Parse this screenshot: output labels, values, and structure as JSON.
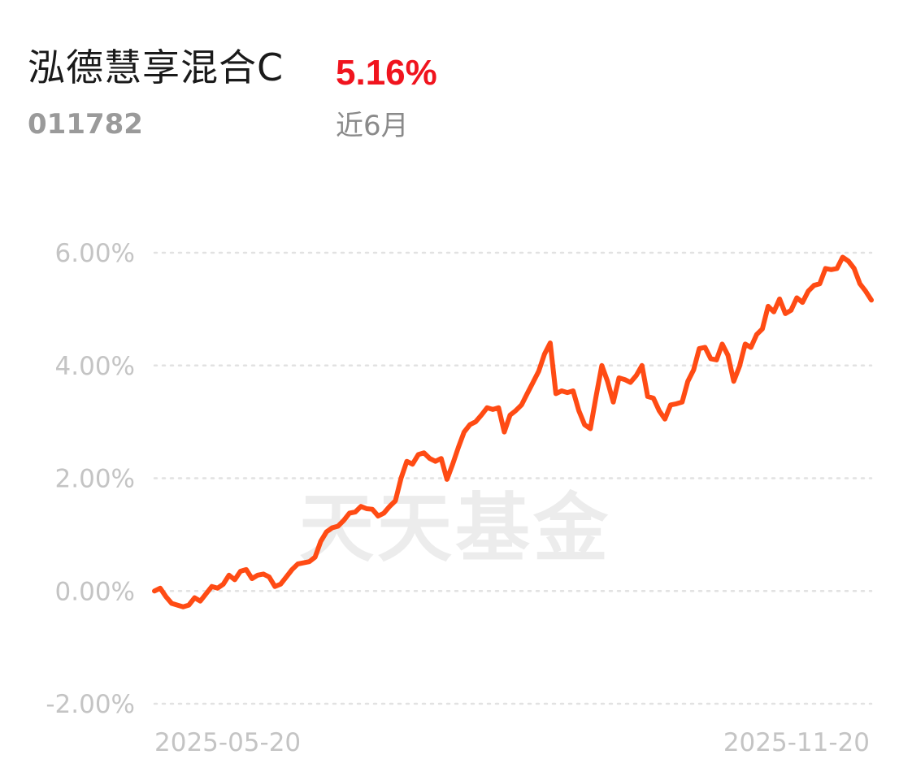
{
  "header": {
    "fund_name": "泓德慧享混合C",
    "fund_code": "011782",
    "return_value": "5.16%",
    "return_period": "近6月",
    "return_color": "#f0141e"
  },
  "watermark": "天天基金",
  "chart_data": {
    "type": "line",
    "title": "",
    "xlabel": "",
    "ylabel": "",
    "ylim": [
      -2.0,
      6.0
    ],
    "y_ticks": [
      "6.00%",
      "4.00%",
      "2.00%",
      "0.00%",
      "-2.00%"
    ],
    "y_tick_values": [
      6.0,
      4.0,
      2.0,
      0.0,
      -2.0
    ],
    "x_tick_labels": [
      "2025-05-20",
      "2025-11-20"
    ],
    "x_range": [
      "2025-05-20",
      "2025-11-21"
    ],
    "grid": true,
    "grid_style": "dotted",
    "line_color": "#ff4b14",
    "series": [
      {
        "values": [
          0.0,
          0.05,
          -0.1,
          -0.22,
          -0.25,
          -0.28,
          -0.25,
          -0.12,
          -0.18,
          -0.05,
          0.08,
          0.05,
          0.12,
          0.28,
          0.2,
          0.35,
          0.38,
          0.22,
          0.28,
          0.3,
          0.25,
          0.08,
          0.12,
          0.25,
          0.38,
          0.48,
          0.5,
          0.52,
          0.6,
          0.88,
          1.05,
          1.12,
          1.15,
          1.25,
          1.38,
          1.4,
          1.5,
          1.46,
          1.45,
          1.33,
          1.38,
          1.5,
          1.6,
          2.0,
          2.3,
          2.25,
          2.42,
          2.45,
          2.35,
          2.3,
          2.35,
          1.98,
          2.25,
          2.55,
          2.82,
          2.95,
          3.0,
          3.12,
          3.25,
          3.22,
          3.25,
          2.82,
          3.12,
          3.2,
          3.3,
          3.5,
          3.7,
          3.9,
          4.2,
          4.4,
          3.5,
          3.55,
          3.52,
          3.55,
          3.2,
          2.95,
          2.88,
          3.45,
          4.0,
          3.72,
          3.35,
          3.78,
          3.75,
          3.7,
          3.82,
          4.0,
          3.45,
          3.42,
          3.2,
          3.05,
          3.3,
          3.32,
          3.35,
          3.72,
          3.92,
          4.3,
          4.32,
          4.12,
          4.1,
          4.38,
          4.18,
          3.72,
          3.98,
          4.38,
          4.32,
          4.55,
          4.65,
          5.05,
          4.95,
          5.18,
          4.92,
          4.98,
          5.2,
          5.12,
          5.32,
          5.42,
          5.45,
          5.72,
          5.7,
          5.72,
          5.92,
          5.85,
          5.72,
          5.45,
          5.32,
          5.16
        ]
      }
    ]
  }
}
